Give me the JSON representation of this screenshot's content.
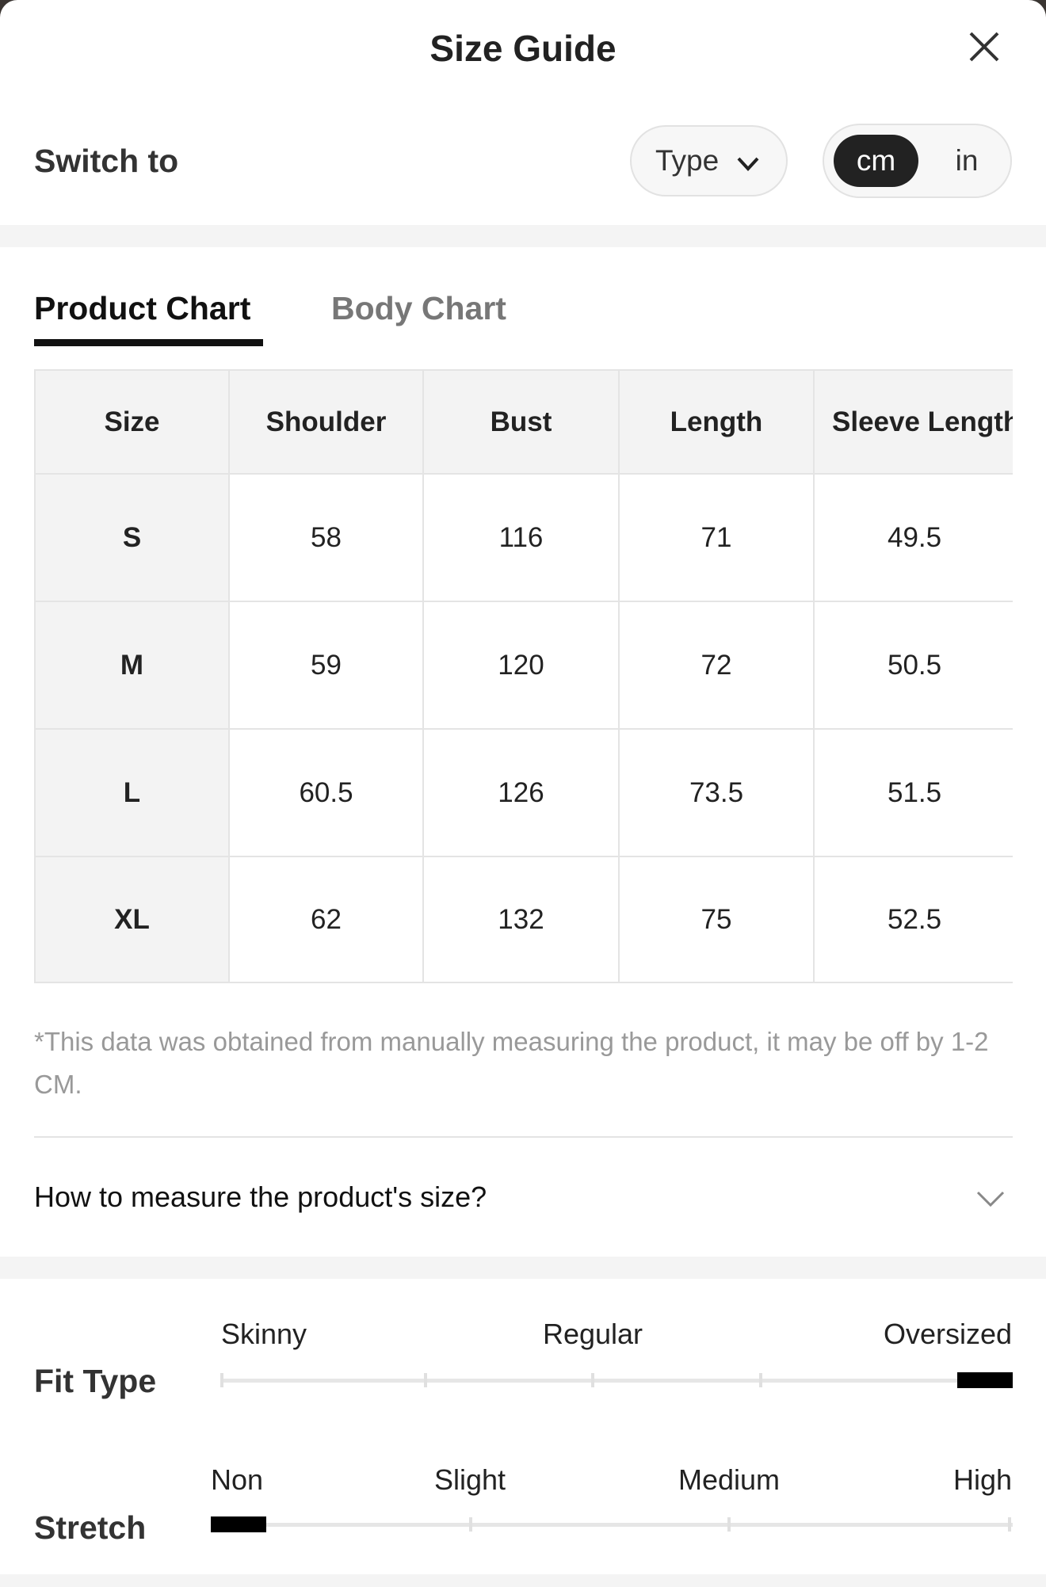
{
  "header": {
    "title": "Size Guide"
  },
  "switch": {
    "label": "Switch to",
    "type": "Type",
    "units": [
      "cm",
      "in"
    ]
  },
  "tabs": [
    "Product Chart",
    "Body Chart"
  ],
  "table": {
    "columns": [
      "Size",
      "Shoulder",
      "Bust",
      "Length",
      "Sleeve Length"
    ],
    "rows": [
      [
        "S",
        "58",
        "116",
        "71",
        "49.5"
      ],
      [
        "M",
        "59",
        "120",
        "72",
        "50.5"
      ],
      [
        "L",
        "60.5",
        "126",
        "73.5",
        "51.5"
      ],
      [
        "XL",
        "62",
        "132",
        "75",
        "52.5"
      ]
    ]
  },
  "note": "*This data was obtained from manually measuring the product, it may be off by 1-2 CM.",
  "faq": "How to measure the product's size?",
  "fit_type": {
    "label": "Fit Type",
    "scale": [
      "Skinny",
      "Regular",
      "Oversized"
    ]
  },
  "stretch": {
    "label": "Stretch",
    "scale": [
      "Non",
      "Slight",
      "Medium",
      "High"
    ]
  }
}
